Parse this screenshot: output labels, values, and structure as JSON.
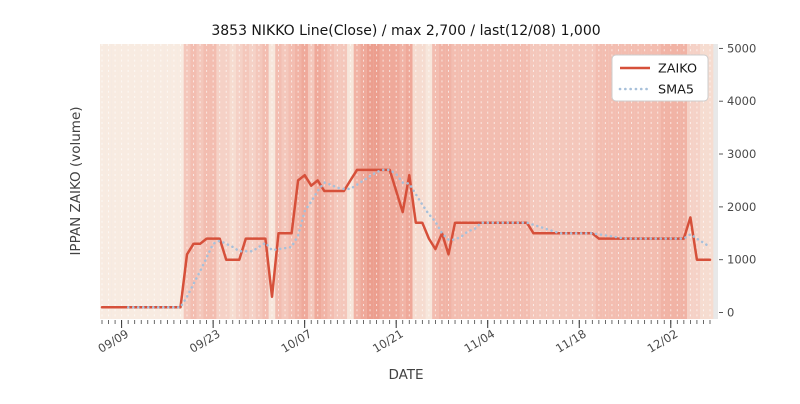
{
  "chart_data": {
    "type": "line",
    "title": "3853 NIKKO Line(Close) / max 2,700 / last(12/08) 1,000",
    "xlabel": "DATE",
    "ylabel": "IPPAN ZAIKO (volume)",
    "ylim": [
      0,
      5000
    ],
    "y_ticks": [
      0,
      1000,
      2000,
      3000,
      4000,
      5000
    ],
    "x_major_ticks": [
      {
        "index": 3,
        "label": "09/09"
      },
      {
        "index": 17,
        "label": "09/23"
      },
      {
        "index": 31,
        "label": "10/07"
      },
      {
        "index": 45,
        "label": "10/21"
      },
      {
        "index": 59,
        "label": "11/04"
      },
      {
        "index": 73,
        "label": "11/18"
      },
      {
        "index": 87,
        "label": "12/02"
      }
    ],
    "legend": {
      "position": "upper right",
      "entries": [
        "ZAIKO",
        "SMA5"
      ]
    },
    "grid": "vertical-daily-dashed",
    "plot_bg": "#e8e8e8",
    "dates": [
      "09/06",
      "09/07",
      "09/08",
      "09/09",
      "09/10",
      "09/11",
      "09/12",
      "09/13",
      "09/14",
      "09/15",
      "09/16",
      "09/17",
      "09/18",
      "09/19",
      "09/20",
      "09/21",
      "09/22",
      "09/23",
      "09/24",
      "09/25",
      "09/26",
      "09/27",
      "09/28",
      "09/29",
      "09/30",
      "10/01",
      "10/02",
      "10/03",
      "10/04",
      "10/05",
      "10/06",
      "10/07",
      "10/08",
      "10/09",
      "10/10",
      "10/11",
      "10/12",
      "10/13",
      "10/14",
      "10/15",
      "10/16",
      "10/17",
      "10/18",
      "10/19",
      "10/20",
      "10/21",
      "10/22",
      "10/23",
      "10/24",
      "10/25",
      "10/26",
      "10/27",
      "10/28",
      "10/29",
      "10/30",
      "10/31",
      "11/01",
      "11/02",
      "11/03",
      "11/04",
      "11/05",
      "11/06",
      "11/07",
      "11/08",
      "11/09",
      "11/10",
      "11/11",
      "11/12",
      "11/13",
      "11/14",
      "11/15",
      "11/16",
      "11/17",
      "11/18",
      "11/19",
      "11/20",
      "11/21",
      "11/22",
      "11/23",
      "11/24",
      "11/25",
      "11/26",
      "11/27",
      "11/28",
      "11/29",
      "11/30",
      "12/01",
      "12/02",
      "12/03",
      "12/04",
      "12/05",
      "12/06",
      "12/07",
      "12/08"
    ],
    "series": [
      {
        "name": "ZAIKO",
        "style": "solid",
        "color": "#d6503a",
        "values": [
          100,
          100,
          100,
          100,
          100,
          100,
          100,
          100,
          100,
          100,
          100,
          100,
          100,
          1100,
          1300,
          1300,
          1400,
          1400,
          1400,
          1000,
          1000,
          1000,
          1400,
          1400,
          1400,
          1400,
          300,
          1500,
          1500,
          1500,
          2500,
          2600,
          2400,
          2500,
          2300,
          2300,
          2300,
          2300,
          2500,
          2700,
          2700,
          2700,
          2700,
          2700,
          2700,
          2300,
          1900,
          2600,
          1700,
          1700,
          1400,
          1200,
          1500,
          1100,
          1700,
          1700,
          1700,
          1700,
          1700,
          1700,
          1700,
          1700,
          1700,
          1700,
          1700,
          1700,
          1500,
          1500,
          1500,
          1500,
          1500,
          1500,
          1500,
          1500,
          1500,
          1500,
          1400,
          1400,
          1400,
          1400,
          1400,
          1400,
          1400,
          1400,
          1400,
          1400,
          1400,
          1400,
          1400,
          1400,
          1800,
          1000,
          1000,
          1000
        ]
      },
      {
        "name": "SMA5",
        "style": "dotted",
        "color": "#a7c0da",
        "values": [
          null,
          null,
          null,
          null,
          100,
          100,
          100,
          100,
          100,
          100,
          100,
          100,
          100,
          300,
          540,
          780,
          1040,
          1300,
          1360,
          1300,
          1240,
          1160,
          1160,
          1160,
          1240,
          1320,
          1180,
          1200,
          1220,
          1240,
          1460,
          1920,
          2100,
          2300,
          2460,
          2420,
          2360,
          2340,
          2340,
          2420,
          2500,
          2580,
          2660,
          2700,
          2700,
          2620,
          2460,
          2440,
          2240,
          2040,
          1860,
          1720,
          1500,
          1380,
          1380,
          1440,
          1540,
          1580,
          1700,
          1700,
          1700,
          1700,
          1700,
          1700,
          1700,
          1700,
          1660,
          1620,
          1580,
          1540,
          1500,
          1500,
          1500,
          1500,
          1500,
          1500,
          1480,
          1460,
          1440,
          1420,
          1400,
          1400,
          1400,
          1400,
          1400,
          1400,
          1400,
          1400,
          1400,
          1400,
          1480,
          1400,
          1320,
          1240
        ]
      }
    ],
    "background_heat": {
      "scale": [
        0,
        10
      ],
      "colors": {
        "low": "#f8f0e6",
        "mid": "#f3bdb0",
        "high": "#e88a78"
      },
      "values": [
        0.5,
        0.5,
        0.5,
        0.5,
        0.5,
        0.5,
        0.5,
        0.5,
        0.5,
        0.5,
        0.5,
        0.5,
        0.5,
        4,
        5,
        4,
        5,
        5,
        3,
        3,
        2,
        3,
        4,
        3,
        4,
        5,
        1,
        5,
        4,
        5,
        6,
        7,
        4,
        7,
        6,
        5,
        4,
        4,
        1,
        6,
        7,
        8,
        8,
        7,
        7,
        7,
        6,
        7,
        2,
        2,
        1,
        5,
        6,
        6,
        5,
        5,
        5,
        5,
        5,
        5,
        5,
        5,
        5,
        5,
        5,
        5,
        4,
        4,
        4,
        4,
        4,
        4,
        4,
        4,
        4,
        4,
        5,
        5,
        5,
        5,
        5,
        5,
        5,
        5,
        5,
        5,
        6,
        6,
        6,
        6,
        3,
        3,
        2,
        2
      ]
    }
  }
}
